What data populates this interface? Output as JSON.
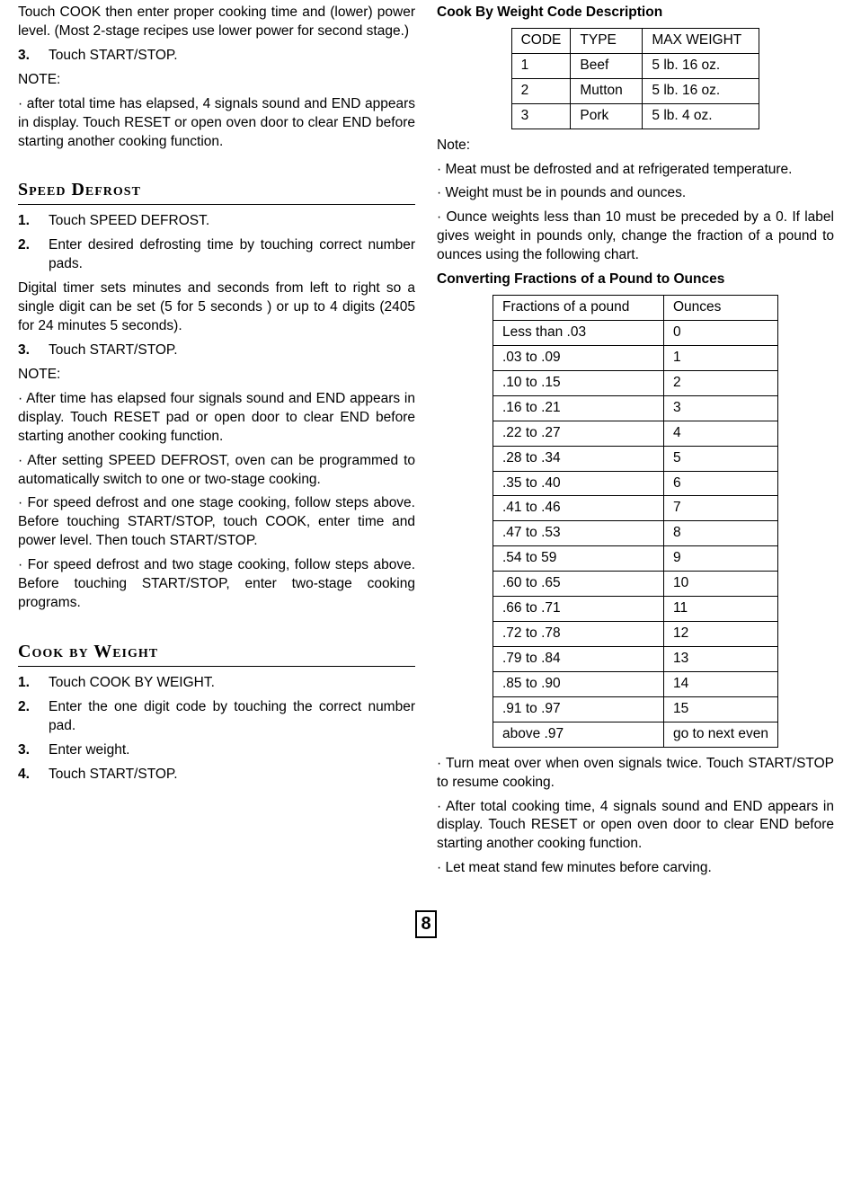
{
  "left": {
    "intro_p1": "Touch COOK then enter proper cooking time and (lower) power level. (Most 2-stage recipes use lower power for second stage.)",
    "step3_num": "3.",
    "step3_txt": "Touch START/STOP.",
    "note_label": "NOTE:",
    "note_after": "· after total time has elapsed, 4 signals sound and END appears in display. Touch RESET or open oven door to clear END before starting another cooking function.",
    "speed_title": "Speed Defrost",
    "sd_step1_num": "1.",
    "sd_step1_txt": "Touch SPEED DEFROST.",
    "sd_step2_num": "2.",
    "sd_step2_txt": "Enter desired defrosting time by touching correct number pads.",
    "sd_digital": "Digital timer sets minutes and seconds from left to right so a single digit can be set (5 for 5 seconds ) or up to 4 digits (2405 for 24 minutes 5 seconds).",
    "sd_step3_num": "3.",
    "sd_step3_txt": "Touch START/STOP.",
    "sd_note_label": "NOTE:",
    "sd_note1": "· After time has elapsed four signals sound and END appears in display. Touch RESET pad or open door to clear END before starting another cooking function.",
    "sd_note2": "· After setting SPEED DEFROST, oven can be programmed to automatically switch to one or two-stage cooking.",
    "sd_note3": "· For speed defrost and one stage cooking, follow steps above. Before touching START/STOP, touch COOK, enter time and power level. Then touch START/STOP.",
    "sd_note4": "· For speed defrost and two stage cooking, follow steps above. Before touching START/STOP, enter two-stage cooking programs.",
    "cbw_title": "Cook by Weight",
    "cbw_step1_num": "1.",
    "cbw_step1_txt": "Touch COOK BY WEIGHT.",
    "cbw_step2_num": "2.",
    "cbw_step2_txt": "Enter the one digit code by touching the correct number pad.",
    "cbw_step3_num": "3.",
    "cbw_step3_txt": "Enter weight.",
    "cbw_step4_num": "4.",
    "cbw_step4_txt": "Touch START/STOP."
  },
  "right": {
    "cbw_desc_title": "Cook By Weight Code Description",
    "table1": {
      "hdr": [
        "CODE",
        "TYPE",
        "MAX WEIGHT"
      ],
      "rows": [
        [
          "1",
          "Beef",
          "5 lb. 16 oz."
        ],
        [
          "2",
          "Mutton",
          "5 lb. 16 oz."
        ],
        [
          "3",
          "Pork",
          "5 lb. 4 oz."
        ]
      ]
    },
    "note_label": "Note:",
    "rnote1": "· Meat must be defrosted and at refrigerated temperature.",
    "rnote2": "· Weight must be in pounds and ounces.",
    "rnote3": "· Ounce weights less than 10 must be preceded by a 0. If label gives weight in pounds only, change the fraction of a pound to ounces using the following chart.",
    "convert_title": "Converting Fractions of a Pound to Ounces",
    "table2": {
      "hdr": [
        "Fractions of a pound",
        "Ounces"
      ],
      "rows": [
        [
          "Less than .03",
          "0"
        ],
        [
          ".03 to .09",
          "1"
        ],
        [
          ".10 to .15",
          "2"
        ],
        [
          ".16 to .21",
          "3"
        ],
        [
          ".22 to .27",
          "4"
        ],
        [
          ".28 to .34",
          "5"
        ],
        [
          ".35 to .40",
          "6"
        ],
        [
          ".41 to .46",
          "7"
        ],
        [
          ".47 to .53",
          "8"
        ],
        [
          ".54 to 59",
          "9"
        ],
        [
          ".60 to .65",
          "10"
        ],
        [
          ".66 to .71",
          "11"
        ],
        [
          ".72 to .78",
          "12"
        ],
        [
          ".79 to .84",
          "13"
        ],
        [
          ".85 to .90",
          "14"
        ],
        [
          ".91 to .97",
          "15"
        ],
        [
          "above .97",
          "go to next even"
        ]
      ]
    },
    "rnote4": "· Turn meat over when oven signals twice. Touch START/STOP to resume cooking.",
    "rnote5": "· After total cooking time, 4 signals sound and END appears in display. Touch RESET or open oven door to clear END before starting another cooking function.",
    "rnote6": "· Let meat stand few minutes before carving."
  },
  "page_number": "8"
}
